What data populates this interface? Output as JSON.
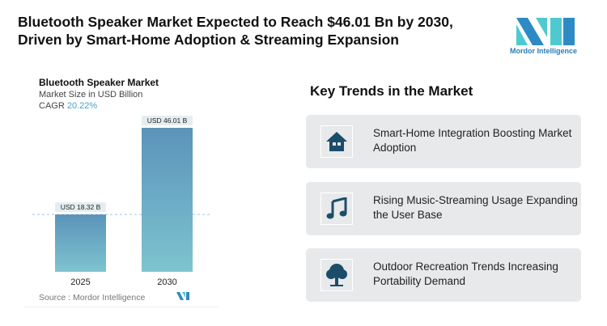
{
  "title": "Bluetooth Speaker Market Expected to Reach $46.01 Bn by 2030, Driven by Smart-Home Adoption & Streaming Expansion",
  "logo": {
    "text": "Mordor Intelligence"
  },
  "chart_data": {
    "type": "bar",
    "title": "Bluetooth Speaker Market",
    "subtitle": "Market Size in USD Billion",
    "cagr_label": "CAGR",
    "cagr_value": "20.22%",
    "categories": [
      "2025",
      "2030"
    ],
    "values": [
      18.32,
      46.01
    ],
    "data_labels": [
      "USD 18.32 B",
      "USD 46.01 B"
    ],
    "source": "Source :  Mordor Intelligence",
    "colors": {
      "bar_top": "#5b93ba",
      "bar_bottom": "#7ec4cf",
      "cagr": "#4aa3c9"
    }
  },
  "trends": {
    "heading": "Key Trends in the Market",
    "items": [
      {
        "icon": "house-icon",
        "text": "Smart-Home Integration Boosting Market Adoption"
      },
      {
        "icon": "music-note-icon",
        "text": "Rising Music-Streaming Usage Expanding the User Base"
      },
      {
        "icon": "tree-icon",
        "text": "Outdoor Recreation Trends Increasing Portability Demand"
      }
    ]
  }
}
